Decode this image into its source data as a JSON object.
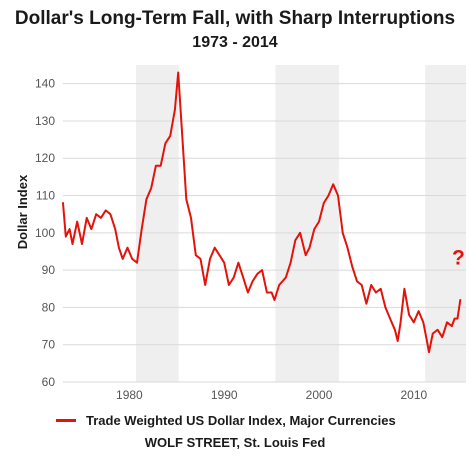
{
  "chart_data": {
    "type": "line",
    "title": "Dollar's Long-Term Fall, with Sharp Interruptions",
    "subtitle": "1973 - 2014",
    "xlabel": "",
    "ylabel": "Dollar Index",
    "xlim": [
      1973,
      2015.5
    ],
    "ylim": [
      60,
      145
    ],
    "xticks": [
      1980,
      1990,
      2000,
      2010
    ],
    "yticks": [
      60,
      70,
      80,
      90,
      100,
      110,
      120,
      130,
      140
    ],
    "grid": "horizontal",
    "legend_position": "bottom",
    "shaded_periods": [
      [
        1980.7,
        1985.2
      ],
      [
        1995.4,
        2002.1
      ],
      [
        2011.2,
        2015.5
      ]
    ],
    "series": [
      {
        "name": "Trade Weighted US Dollar Index, Major Currencies",
        "color": "#e3120b",
        "x": [
          1973.0,
          1973.3,
          1973.7,
          1974.0,
          1974.5,
          1975.0,
          1975.5,
          1976.0,
          1976.5,
          1977.0,
          1977.5,
          1978.0,
          1978.5,
          1978.9,
          1979.3,
          1979.8,
          1980.3,
          1980.8,
          1981.3,
          1981.8,
          1982.3,
          1982.8,
          1983.3,
          1983.8,
          1984.3,
          1984.8,
          1985.15,
          1985.6,
          1986.0,
          1986.5,
          1987.0,
          1987.5,
          1988.0,
          1988.5,
          1989.0,
          1989.5,
          1990.0,
          1990.5,
          1991.0,
          1991.5,
          1992.0,
          1992.5,
          1993.0,
          1993.5,
          1994.0,
          1994.5,
          1995.0,
          1995.3,
          1995.8,
          1996.5,
          1997.0,
          1997.5,
          1998.0,
          1998.6,
          1999.0,
          1999.5,
          2000.0,
          2000.5,
          2001.0,
          2001.5,
          2002.0,
          2002.5,
          2003.0,
          2003.5,
          2004.0,
          2004.5,
          2005.0,
          2005.5,
          2006.0,
          2006.5,
          2007.0,
          2007.5,
          2008.0,
          2008.3,
          2008.6,
          2009.0,
          2009.5,
          2010.0,
          2010.5,
          2011.0,
          2011.3,
          2011.6,
          2012.0,
          2012.5,
          2013.0,
          2013.5,
          2014.0,
          2014.3,
          2014.6,
          2014.9
        ],
        "values": [
          108,
          99,
          101,
          97,
          103,
          97,
          104,
          101,
          105,
          104,
          106,
          105,
          101,
          96,
          93,
          96,
          93,
          92,
          101,
          109,
          112,
          118,
          118,
          124,
          126,
          133,
          143,
          125,
          109,
          104,
          94,
          93,
          86,
          93,
          96,
          94,
          92,
          86,
          88,
          92,
          88,
          84,
          87,
          89,
          90,
          84,
          84,
          82,
          86,
          88,
          92,
          98,
          100,
          94,
          96,
          101,
          103,
          108,
          110,
          113,
          110,
          100,
          96,
          91,
          87,
          86,
          81,
          86,
          84,
          85,
          80,
          77,
          74,
          71,
          76,
          85,
          78,
          76,
          79,
          76,
          72,
          68,
          73,
          74,
          72,
          76,
          75,
          77,
          77,
          82
        ]
      }
    ],
    "annotations": [
      {
        "text": "?",
        "x": 2014.7,
        "y": 91.5,
        "color": "#e3120b"
      }
    ]
  },
  "legend": {
    "label": "Trade Weighted US Dollar Index, Major Currencies",
    "color": "#e3120b"
  },
  "source": "WOLF STREET, St. Louis Fed"
}
